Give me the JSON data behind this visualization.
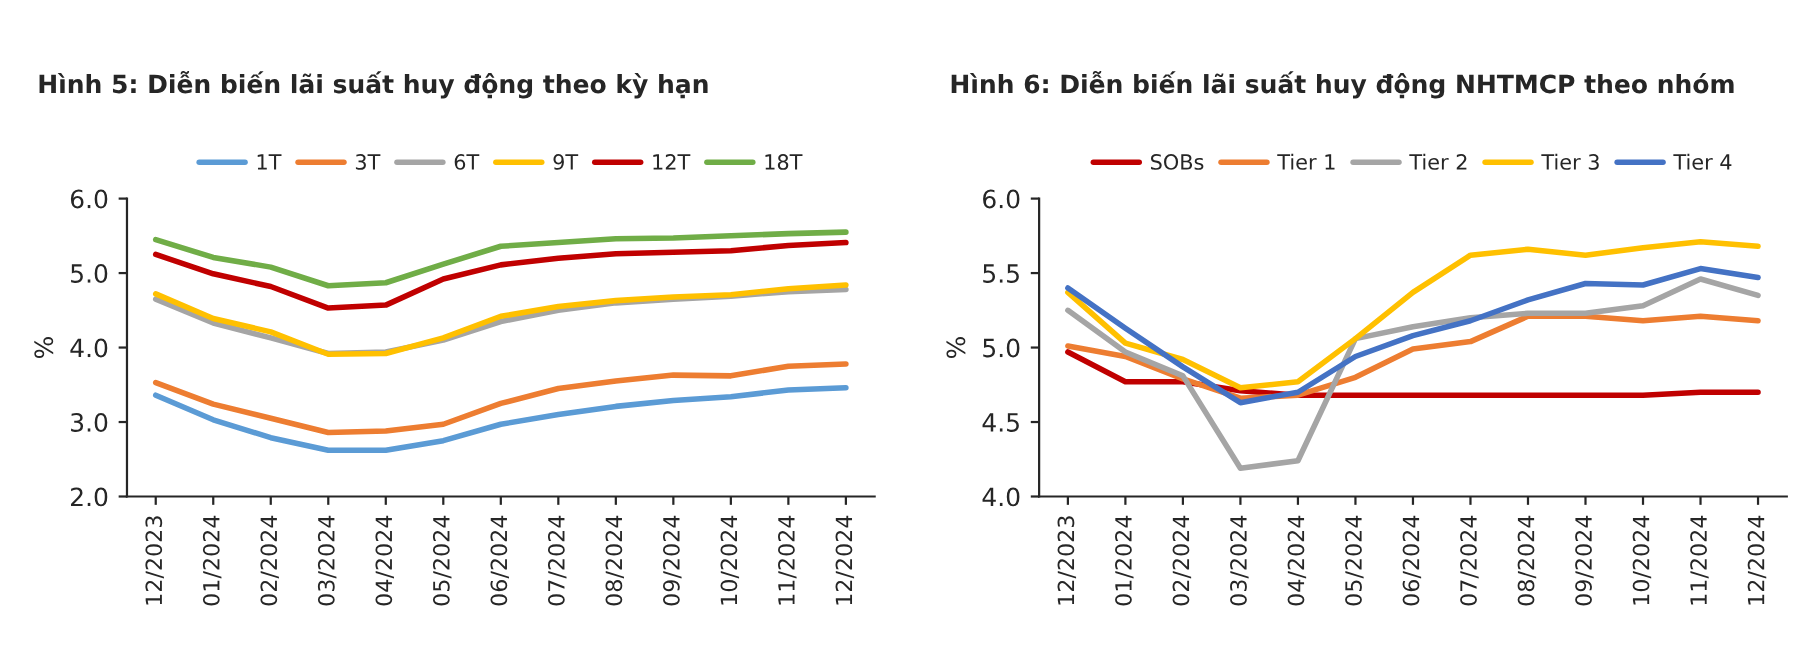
{
  "chart_data": [
    {
      "type": "line",
      "title": "Hình 5: Diễn biến lãi suất huy động theo kỳ hạn",
      "ylabel": "%",
      "categories": [
        "12/2023",
        "01/2024",
        "02/2024",
        "03/2024",
        "04/2024",
        "05/2024",
        "06/2024",
        "07/2024",
        "08/2024",
        "09/2024",
        "10/2024",
        "11/2024",
        "12/2024"
      ],
      "series": [
        {
          "name": "1T",
          "color": "#5b9bd5",
          "values": [
            3.36,
            3.03,
            2.79,
            2.62,
            2.62,
            2.75,
            2.97,
            3.1,
            3.21,
            3.29,
            3.34,
            3.43,
            3.46
          ]
        },
        {
          "name": "3T",
          "color": "#ed7d31",
          "values": [
            3.53,
            3.24,
            3.05,
            2.86,
            2.88,
            2.97,
            3.25,
            3.45,
            3.55,
            3.63,
            3.62,
            3.75,
            3.78
          ]
        },
        {
          "name": "6T",
          "color": "#a5a5a5",
          "values": [
            4.65,
            4.33,
            4.13,
            3.92,
            3.94,
            4.1,
            4.35,
            4.5,
            4.6,
            4.65,
            4.69,
            4.75,
            4.78
          ]
        },
        {
          "name": "9T",
          "color": "#ffc000",
          "values": [
            4.72,
            4.39,
            4.21,
            3.91,
            3.92,
            4.13,
            4.42,
            4.55,
            4.63,
            4.68,
            4.71,
            4.79,
            4.84
          ]
        },
        {
          "name": "12T",
          "color": "#c00000",
          "values": [
            5.25,
            4.99,
            4.82,
            4.53,
            4.57,
            4.92,
            5.11,
            5.2,
            5.26,
            5.28,
            5.3,
            5.37,
            5.41
          ]
        },
        {
          "name": "18T",
          "color": "#70ad47",
          "values": [
            5.45,
            5.21,
            5.08,
            4.83,
            4.87,
            5.12,
            5.36,
            5.41,
            5.46,
            5.47,
            5.5,
            5.53,
            5.55
          ]
        }
      ],
      "ylim": [
        2.0,
        6.0
      ],
      "yticks": [
        {
          "value": 2,
          "label": "2.0"
        },
        {
          "value": 3,
          "label": "3.0"
        },
        {
          "value": 4,
          "label": "4.0"
        },
        {
          "value": 5,
          "label": "5.0"
        },
        {
          "value": 6,
          "label": "6.0"
        }
      ],
      "legend": "top",
      "grid": false
    },
    {
      "type": "line",
      "title": "Hình 6: Diễn biến lãi suất huy động NHTMCP theo nhóm",
      "ylabel": "%",
      "categories": [
        "12/2023",
        "01/2024",
        "02/2024",
        "03/2024",
        "04/2024",
        "05/2024",
        "06/2024",
        "07/2024",
        "08/2024",
        "09/2024",
        "10/2024",
        "11/2024",
        "12/2024"
      ],
      "series": [
        {
          "name": "SOBs",
          "color": "#c00000",
          "values": [
            4.97,
            4.77,
            4.77,
            4.71,
            4.68,
            4.68,
            4.68,
            4.68,
            4.68,
            4.68,
            4.68,
            4.7,
            4.7
          ]
        },
        {
          "name": "Tier 1",
          "color": "#ed7d31",
          "values": [
            5.01,
            4.94,
            4.79,
            4.66,
            4.68,
            4.8,
            4.99,
            5.04,
            5.21,
            5.21,
            5.18,
            5.21,
            5.18
          ]
        },
        {
          "name": "Tier 2",
          "color": "#a5a5a5",
          "values": [
            5.25,
            4.97,
            4.81,
            4.19,
            4.24,
            5.06,
            5.14,
            5.2,
            5.23,
            5.23,
            5.28,
            5.46,
            5.35
          ]
        },
        {
          "name": "Tier 3",
          "color": "#ffc000",
          "values": [
            5.37,
            5.03,
            4.92,
            4.73,
            4.77,
            5.06,
            5.37,
            5.62,
            5.66,
            5.62,
            5.67,
            5.71,
            5.68
          ]
        },
        {
          "name": "Tier 4",
          "color": "#4472c4",
          "values": [
            5.4,
            5.13,
            4.87,
            4.63,
            4.7,
            4.94,
            5.08,
            5.18,
            5.32,
            5.43,
            5.42,
            5.53,
            5.47
          ]
        }
      ],
      "ylim": [
        4.0,
        6.0
      ],
      "yticks": [
        {
          "value": 4,
          "label": "4.0"
        },
        {
          "value": 4.5,
          "label": "4.5"
        },
        {
          "value": 5,
          "label": "5.0"
        },
        {
          "value": 5.5,
          "label": "5.5"
        },
        {
          "value": 6,
          "label": "6.0"
        }
      ],
      "legend": "top",
      "grid": false
    }
  ]
}
